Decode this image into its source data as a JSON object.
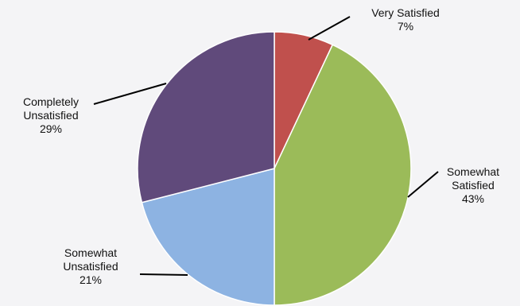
{
  "chart_data": {
    "type": "pie",
    "title": "",
    "slices": [
      {
        "label_lines": [
          "Very Satisfied"
        ],
        "value": 7,
        "value_label": "7%",
        "color": "#c0504d"
      },
      {
        "label_lines": [
          "Somewhat",
          "Satisfied"
        ],
        "value": 43,
        "value_label": "43%",
        "color": "#9bbb59"
      },
      {
        "label_lines": [
          "Somewhat",
          "Unsatisfied"
        ],
        "value": 21,
        "value_label": "21%",
        "color": "#8db3e2"
      },
      {
        "label_lines": [
          "Completely",
          "Unsatisfied"
        ],
        "value": 29,
        "value_label": "29%",
        "color": "#604a7b"
      }
    ],
    "start_angle": "12 o'clock",
    "direction": "clockwise",
    "legend": "none",
    "leader_lines": true
  }
}
